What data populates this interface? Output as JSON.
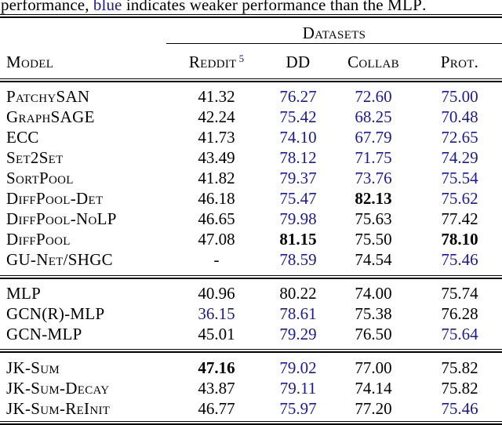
{
  "caption": {
    "part1": "performance, ",
    "highlight_word": "blue",
    "part2": " indicates weaker performance than the ",
    "mlp_word": "MLP",
    "part3": "."
  },
  "colors": {
    "weaker_blue": "#1a1a96",
    "text_black": "#000000"
  },
  "table": {
    "group_header": "Datasets",
    "columns": {
      "model": "Model",
      "reddit": "Reddit",
      "reddit_superscript": "5",
      "dd": "DD",
      "collab": "Collab",
      "prot": "Prot."
    },
    "sections": [
      {
        "rows": [
          {
            "model": "PatchySAN",
            "values": [
              {
                "v": "41.32",
                "style": "black"
              },
              {
                "v": "76.27",
                "style": "blue"
              },
              {
                "v": "72.60",
                "style": "blue"
              },
              {
                "v": "75.00",
                "style": "blue"
              }
            ]
          },
          {
            "model": "GraphSAGE",
            "values": [
              {
                "v": "42.24",
                "style": "black"
              },
              {
                "v": "75.42",
                "style": "blue"
              },
              {
                "v": "68.25",
                "style": "blue"
              },
              {
                "v": "70.48",
                "style": "blue"
              }
            ]
          },
          {
            "model": "ECC",
            "values": [
              {
                "v": "41.73",
                "style": "black"
              },
              {
                "v": "74.10",
                "style": "blue"
              },
              {
                "v": "67.79",
                "style": "blue"
              },
              {
                "v": "72.65",
                "style": "blue"
              }
            ]
          },
          {
            "model": "Set2Set",
            "values": [
              {
                "v": "43.49",
                "style": "black"
              },
              {
                "v": "78.12",
                "style": "blue"
              },
              {
                "v": "71.75",
                "style": "blue"
              },
              {
                "v": "74.29",
                "style": "blue"
              }
            ]
          },
          {
            "model": "SortPool",
            "values": [
              {
                "v": "41.82",
                "style": "black"
              },
              {
                "v": "79.37",
                "style": "blue"
              },
              {
                "v": "73.76",
                "style": "blue"
              },
              {
                "v": "75.54",
                "style": "blue"
              }
            ]
          },
          {
            "model": "DiffPool-Det",
            "values": [
              {
                "v": "46.18",
                "style": "black"
              },
              {
                "v": "75.47",
                "style": "blue"
              },
              {
                "v": "82.13",
                "style": "bold"
              },
              {
                "v": "75.62",
                "style": "blue"
              }
            ]
          },
          {
            "model": "DiffPool-NoLP",
            "values": [
              {
                "v": "46.65",
                "style": "black"
              },
              {
                "v": "79.98",
                "style": "blue"
              },
              {
                "v": "75.63",
                "style": "black"
              },
              {
                "v": "77.42",
                "style": "black"
              }
            ]
          },
          {
            "model": "DiffPool",
            "values": [
              {
                "v": "47.08",
                "style": "black"
              },
              {
                "v": "81.15",
                "style": "bold"
              },
              {
                "v": "75.50",
                "style": "black"
              },
              {
                "v": "78.10",
                "style": "bold"
              }
            ]
          },
          {
            "model": "GU-Net/SHGC",
            "values": [
              {
                "v": "-",
                "style": "black"
              },
              {
                "v": "78.59",
                "style": "blue"
              },
              {
                "v": "74.54",
                "style": "black"
              },
              {
                "v": "75.46",
                "style": "blue"
              }
            ]
          }
        ]
      },
      {
        "rows": [
          {
            "model": "MLP",
            "values": [
              {
                "v": "40.96",
                "style": "black"
              },
              {
                "v": "80.22",
                "style": "black"
              },
              {
                "v": "74.00",
                "style": "black"
              },
              {
                "v": "75.74",
                "style": "black"
              }
            ]
          },
          {
            "model": "GCN(R)-MLP",
            "values": [
              {
                "v": "36.15",
                "style": "blue"
              },
              {
                "v": "78.61",
                "style": "blue"
              },
              {
                "v": "75.38",
                "style": "black"
              },
              {
                "v": "76.28",
                "style": "black"
              }
            ]
          },
          {
            "model": "GCN-MLP",
            "values": [
              {
                "v": "45.01",
                "style": "black"
              },
              {
                "v": "79.29",
                "style": "blue"
              },
              {
                "v": "76.50",
                "style": "black"
              },
              {
                "v": "75.64",
                "style": "blue"
              }
            ]
          }
        ]
      },
      {
        "rows": [
          {
            "model": "JK-Sum",
            "values": [
              {
                "v": "47.16",
                "style": "bold"
              },
              {
                "v": "79.02",
                "style": "blue"
              },
              {
                "v": "77.00",
                "style": "black"
              },
              {
                "v": "75.82",
                "style": "black"
              }
            ]
          },
          {
            "model": "JK-Sum-Decay",
            "values": [
              {
                "v": "43.87",
                "style": "black"
              },
              {
                "v": "79.11",
                "style": "blue"
              },
              {
                "v": "74.14",
                "style": "black"
              },
              {
                "v": "75.82",
                "style": "black"
              }
            ]
          },
          {
            "model": "JK-Sum-ReInit",
            "values": [
              {
                "v": "46.77",
                "style": "black"
              },
              {
                "v": "75.97",
                "style": "blue"
              },
              {
                "v": "77.20",
                "style": "black"
              },
              {
                "v": "75.46",
                "style": "blue"
              }
            ]
          }
        ]
      }
    ]
  }
}
